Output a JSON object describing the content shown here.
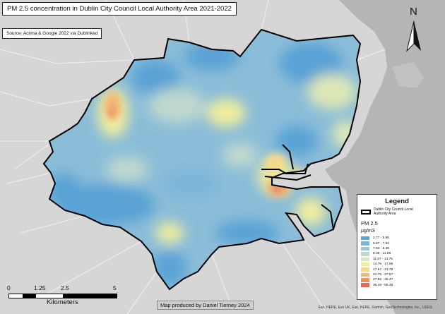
{
  "title": "PM 2.5 concentration in Dublin City Council Local Authority Area 2021-2022",
  "source": "Source: Aclima & Google 2022 via Dublinked",
  "north_arrow": {
    "letter": "N",
    "icon": "north-arrow-icon"
  },
  "legend": {
    "title": "Legend",
    "boundary_label": "Dublin City Council Local Authority Area",
    "subtitle": "PM 2.5",
    "unit": "µg/m3",
    "classes": [
      {
        "label": "2.77 - 5.86",
        "color": "#5aa3d6"
      },
      {
        "label": "5.87 - 7.52",
        "color": "#7ab6d8"
      },
      {
        "label": "7.53 - 8.38",
        "color": "#9fc8d6"
      },
      {
        "label": "8.39 - 11.86",
        "color": "#bfd8cf"
      },
      {
        "label": "11.87 - 14.75",
        "color": "#dde7b6"
      },
      {
        "label": "14.76 - 17.86",
        "color": "#f1ee9c"
      },
      {
        "label": "17.87 - 21.78",
        "color": "#f6d98a"
      },
      {
        "label": "21.79 - 27.57",
        "color": "#f3b777"
      },
      {
        "label": "27.58 - 36.47",
        "color": "#ec9166"
      },
      {
        "label": "36.48 - 55.49",
        "color": "#e26a5a"
      }
    ]
  },
  "scale": {
    "ticks": [
      "0",
      "1.25",
      "2.5",
      "5"
    ],
    "units": "Kilometers"
  },
  "credit": "Map produced by Daniel Tierney 2024",
  "attribution": "Esri, HERE, Esri UK, Esri, HERE, Garmin, GeoTechnologies, Inc., USGS"
}
